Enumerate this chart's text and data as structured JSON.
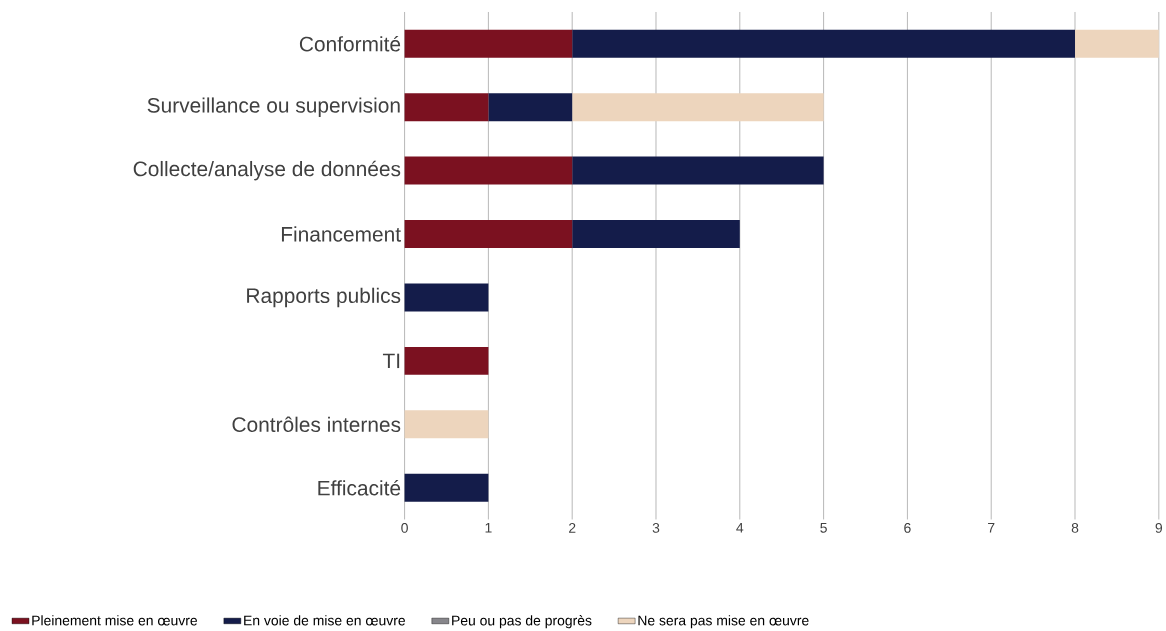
{
  "chart_data": {
    "type": "bar",
    "orientation": "horizontal",
    "stacked": true,
    "categories": [
      "Conformité",
      "Surveillance ou supervision",
      "Collecte/analyse de données",
      "Financement",
      "Rapports publics",
      "TI",
      "Contrôles internes",
      "Efficacité"
    ],
    "series": [
      {
        "name": "Pleinement mise en œuvre",
        "color": "#7b1120",
        "values": [
          2,
          1,
          2,
          2,
          0,
          1,
          0,
          0
        ]
      },
      {
        "name": "En voie de mise en œuvre",
        "color": "#141c4a",
        "values": [
          6,
          1,
          3,
          2,
          1,
          0,
          0,
          1
        ]
      },
      {
        "name": "Peu ou pas de progrès",
        "color": "#87868b",
        "values": [
          0,
          0,
          0,
          0,
          0,
          0,
          0,
          0
        ]
      },
      {
        "name": "Ne sera pas mise en œuvre",
        "color": "#edd5bd",
        "values": [
          1,
          3,
          0,
          0,
          0,
          0,
          1,
          0
        ]
      }
    ],
    "xlim": [
      0,
      9
    ],
    "xticks": [
      0,
      1,
      2,
      3,
      4,
      5,
      6,
      7,
      8,
      9
    ],
    "grid": "x",
    "legend": "bottom"
  }
}
